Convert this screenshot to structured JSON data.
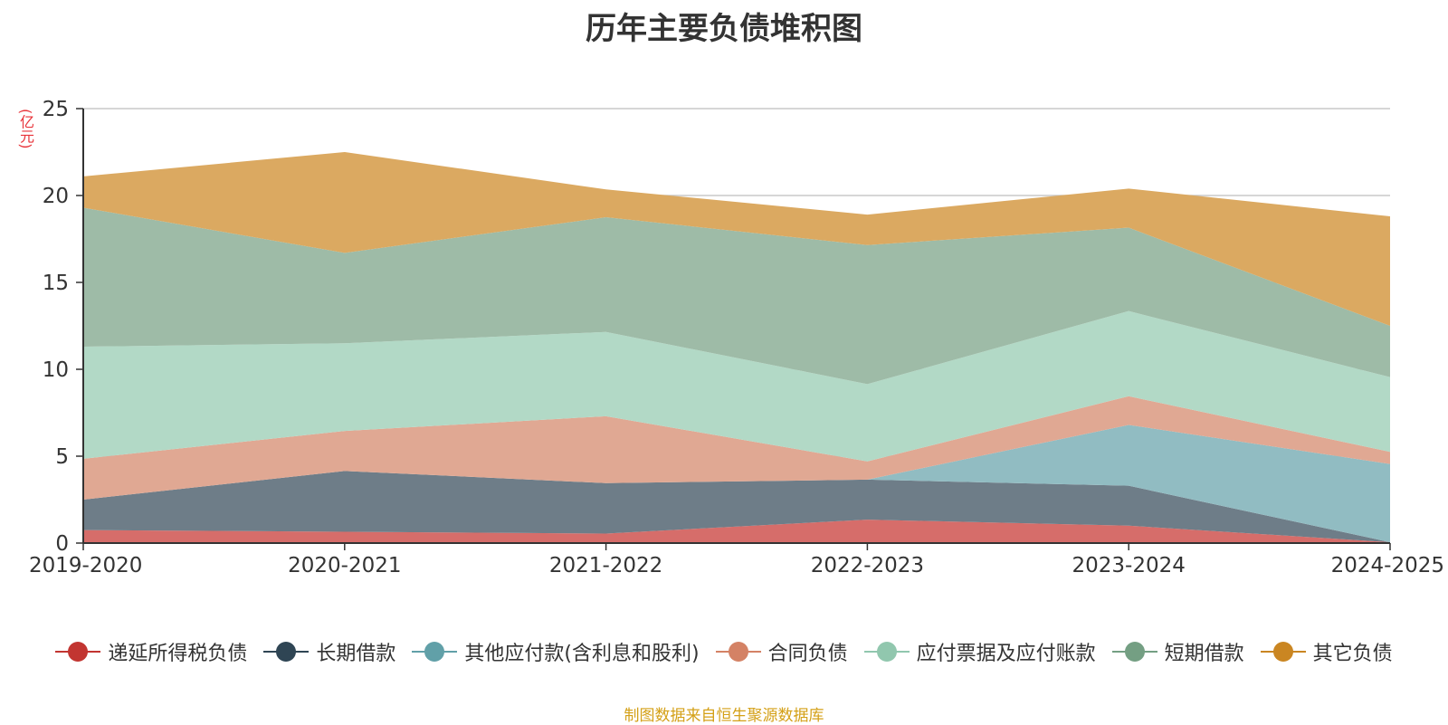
{
  "chart_data": {
    "type": "area",
    "stacked": true,
    "title": "历年主要负债堆积图",
    "unit_label": "(亿元)",
    "source_note": "制图数据来自恒生聚源数据库",
    "x": [
      "2019-2020",
      "2020-2021",
      "2021-2022",
      "2022-2023",
      "2023-2024",
      "2024-2025"
    ],
    "ylim": [
      0,
      25
    ],
    "yticks": [
      0,
      5,
      10,
      15,
      20,
      25
    ],
    "grid": true,
    "legend_position": "bottom",
    "series": [
      {
        "name": "递延所得税负债",
        "color": "#c23531",
        "fill": "#d66d6a",
        "values": [
          0.75,
          0.65,
          0.55,
          1.35,
          1.0,
          0.05
        ]
      },
      {
        "name": "长期借款",
        "color": "#2f4554",
        "fill": "#6e7d88",
        "values": [
          1.75,
          3.5,
          2.9,
          2.3,
          2.3,
          0.0
        ]
      },
      {
        "name": "其他应付款(含利息和股利)",
        "color": "#61a0a8",
        "fill": "#91bcc2",
        "values": [
          0.0,
          0.0,
          0.0,
          0.0,
          3.5,
          4.5
        ]
      },
      {
        "name": "合同负债",
        "color": "#d48265",
        "fill": "#e0a893",
        "values": [
          2.35,
          2.3,
          3.85,
          1.05,
          1.65,
          0.7
        ]
      },
      {
        "name": "应付票据及应付账款",
        "color": "#91c7ae",
        "fill": "#b2d9c6",
        "values": [
          6.45,
          5.05,
          4.85,
          4.45,
          4.9,
          4.3
        ]
      },
      {
        "name": "短期借款",
        "color": "#749f83",
        "fill": "#9ebba7",
        "values": [
          8.0,
          5.2,
          6.6,
          8.0,
          4.8,
          2.95
        ]
      },
      {
        "name": "其它负债",
        "color": "#ca8622",
        "fill": "#dba961",
        "values": [
          1.8,
          5.8,
          1.6,
          1.75,
          2.25,
          6.3
        ]
      }
    ]
  }
}
